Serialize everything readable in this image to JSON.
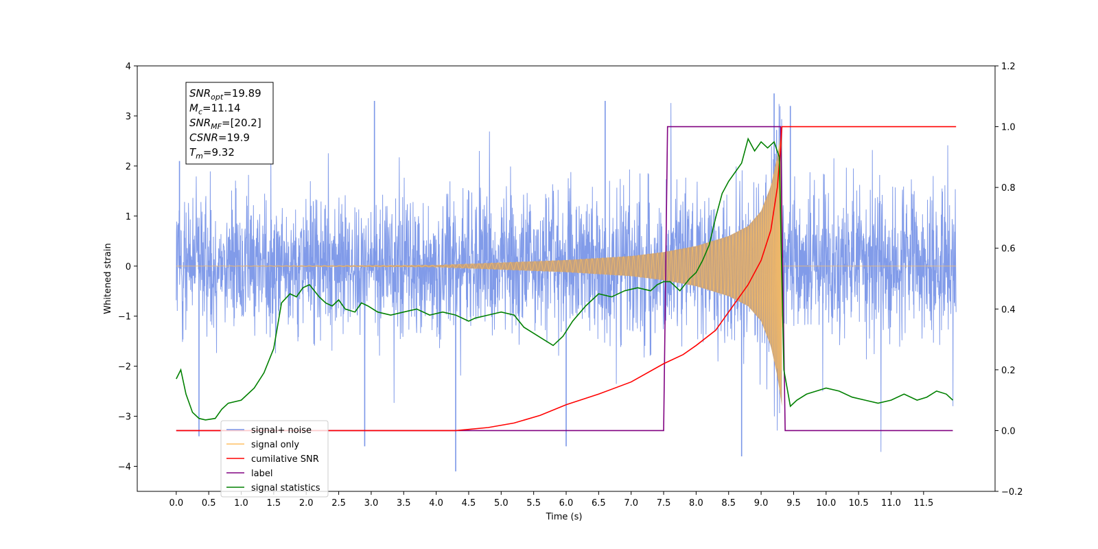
{
  "chart_data": {
    "type": "line",
    "xlabel": "Time (s)",
    "ylabel": "Whitened strain",
    "xlim": [
      -0.6,
      12.6
    ],
    "ylim_left": [
      -4.5,
      4.0
    ],
    "ylim_right": [
      -0.2,
      1.2
    ],
    "x_ticks": [
      "0.0",
      "0.5",
      "1.0",
      "1.5",
      "2.0",
      "2.5",
      "3.0",
      "3.5",
      "4.0",
      "4.5",
      "5.0",
      "5.5",
      "6.0",
      "6.5",
      "7.0",
      "7.5",
      "8.0",
      "8.5",
      "9.0",
      "9.5",
      "10.0",
      "10.5",
      "11.0",
      "11.5"
    ],
    "y_ticks_left": [
      "4",
      "3",
      "2",
      "1",
      "0",
      "−1",
      "−2",
      "−3",
      "−4"
    ],
    "y_ticks_right": [
      "1.2",
      "1.0",
      "0.8",
      "0.6",
      "0.4",
      "0.2",
      "0.0",
      "−0.2"
    ],
    "annotation": [
      {
        "sym": "SNR",
        "sub": "opt",
        "value": "=19.89"
      },
      {
        "sym": "M",
        "sub": "c",
        "value": "=11.14"
      },
      {
        "sym": "SNR",
        "sub": "MF",
        "value": "=[20.2]"
      },
      {
        "sym": "CSNR",
        "sub": "",
        "value": "=19.9"
      },
      {
        "sym": "T",
        "sub": "m",
        "value": "=9.32"
      }
    ],
    "legend": [
      {
        "label": "signal+ noise",
        "color": "#7a96e8"
      },
      {
        "label": "signal only",
        "color": "#ffbf60"
      },
      {
        "label": "cumilative SNR",
        "color": "#ff0000"
      },
      {
        "label": "label",
        "color": "#800080"
      },
      {
        "label": "signal statistics",
        "color": "#008000"
      }
    ],
    "series": [
      {
        "name": "signal+ noise",
        "axis": "left",
        "color": "#7a96e8",
        "x_range": [
          0.0,
          12.0
        ],
        "typical_envelope": [
          -1.6,
          2.0
        ],
        "extreme_spikes": [
          [
            0.05,
            2.1
          ],
          [
            0.35,
            -3.4
          ],
          [
            2.9,
            -3.6
          ],
          [
            3.05,
            3.3
          ],
          [
            4.3,
            -4.1
          ],
          [
            6.0,
            -3.6
          ],
          [
            6.6,
            3.3
          ],
          [
            8.7,
            -3.8
          ],
          [
            9.2,
            3.45
          ],
          [
            9.45,
            3.2
          ]
        ]
      },
      {
        "name": "signal only",
        "axis": "left",
        "color": "#ffbf60",
        "fill": "#c4a07d",
        "x_range": [
          0.0,
          12.0
        ],
        "merger_time": 9.32,
        "envelope": [
          [
            4.0,
            0.02
          ],
          [
            6.0,
            0.12
          ],
          [
            7.0,
            0.2
          ],
          [
            7.5,
            0.28
          ],
          [
            8.0,
            0.4
          ],
          [
            8.5,
            0.6
          ],
          [
            8.8,
            0.8
          ],
          [
            9.0,
            1.1
          ],
          [
            9.15,
            1.6
          ],
          [
            9.25,
            2.2
          ],
          [
            9.32,
            2.8
          ]
        ]
      },
      {
        "name": "cumilative SNR",
        "axis": "right",
        "color": "#ff0000",
        "x": [
          0.0,
          4.3,
          4.8,
          5.2,
          5.6,
          6.0,
          6.5,
          7.0,
          7.5,
          7.8,
          8.0,
          8.3,
          8.5,
          8.8,
          9.0,
          9.15,
          9.25,
          9.3,
          9.32,
          12.0
        ],
        "y": [
          0.0,
          0.0,
          0.01,
          0.025,
          0.05,
          0.085,
          0.12,
          0.16,
          0.22,
          0.25,
          0.28,
          0.33,
          0.39,
          0.48,
          0.56,
          0.66,
          0.8,
          0.93,
          1.0,
          1.0
        ]
      },
      {
        "name": "label",
        "axis": "right",
        "color": "#800080",
        "x": [
          0.0,
          7.5,
          7.56,
          9.3,
          9.37,
          11.95
        ],
        "y": [
          0.0,
          0.0,
          1.0,
          1.0,
          0.0,
          0.0
        ]
      },
      {
        "name": "signal statistics",
        "axis": "right",
        "color": "#008000",
        "x": [
          0.0,
          0.07,
          0.15,
          0.25,
          0.35,
          0.45,
          0.6,
          0.7,
          0.8,
          1.0,
          1.2,
          1.35,
          1.5,
          1.62,
          1.75,
          1.85,
          1.95,
          2.05,
          2.2,
          2.3,
          2.4,
          2.5,
          2.6,
          2.75,
          2.85,
          2.95,
          3.1,
          3.3,
          3.5,
          3.7,
          3.9,
          4.1,
          4.3,
          4.5,
          4.6,
          4.8,
          5.0,
          5.2,
          5.35,
          5.5,
          5.65,
          5.8,
          5.95,
          6.1,
          6.3,
          6.5,
          6.7,
          6.9,
          7.1,
          7.3,
          7.4,
          7.5,
          7.6,
          7.75,
          7.9,
          8.0,
          8.1,
          8.2,
          8.3,
          8.4,
          8.5,
          8.6,
          8.7,
          8.8,
          8.9,
          9.0,
          9.1,
          9.2,
          9.28,
          9.35,
          9.45,
          9.55,
          9.7,
          9.85,
          10.0,
          10.2,
          10.4,
          10.6,
          10.8,
          11.0,
          11.2,
          11.4,
          11.55,
          11.7,
          11.85,
          11.95
        ],
        "y": [
          0.17,
          0.2,
          0.12,
          0.06,
          0.04,
          0.035,
          0.04,
          0.07,
          0.09,
          0.1,
          0.14,
          0.19,
          0.27,
          0.42,
          0.45,
          0.44,
          0.47,
          0.48,
          0.44,
          0.42,
          0.41,
          0.43,
          0.4,
          0.39,
          0.42,
          0.41,
          0.39,
          0.38,
          0.39,
          0.4,
          0.38,
          0.39,
          0.38,
          0.36,
          0.37,
          0.38,
          0.39,
          0.38,
          0.34,
          0.32,
          0.3,
          0.28,
          0.31,
          0.36,
          0.41,
          0.45,
          0.44,
          0.46,
          0.47,
          0.46,
          0.48,
          0.49,
          0.49,
          0.46,
          0.5,
          0.52,
          0.56,
          0.61,
          0.7,
          0.78,
          0.82,
          0.85,
          0.88,
          0.96,
          0.92,
          0.95,
          0.93,
          0.95,
          0.9,
          0.2,
          0.08,
          0.1,
          0.12,
          0.13,
          0.14,
          0.13,
          0.11,
          0.1,
          0.09,
          0.1,
          0.12,
          0.1,
          0.11,
          0.13,
          0.12,
          0.1
        ]
      }
    ]
  }
}
